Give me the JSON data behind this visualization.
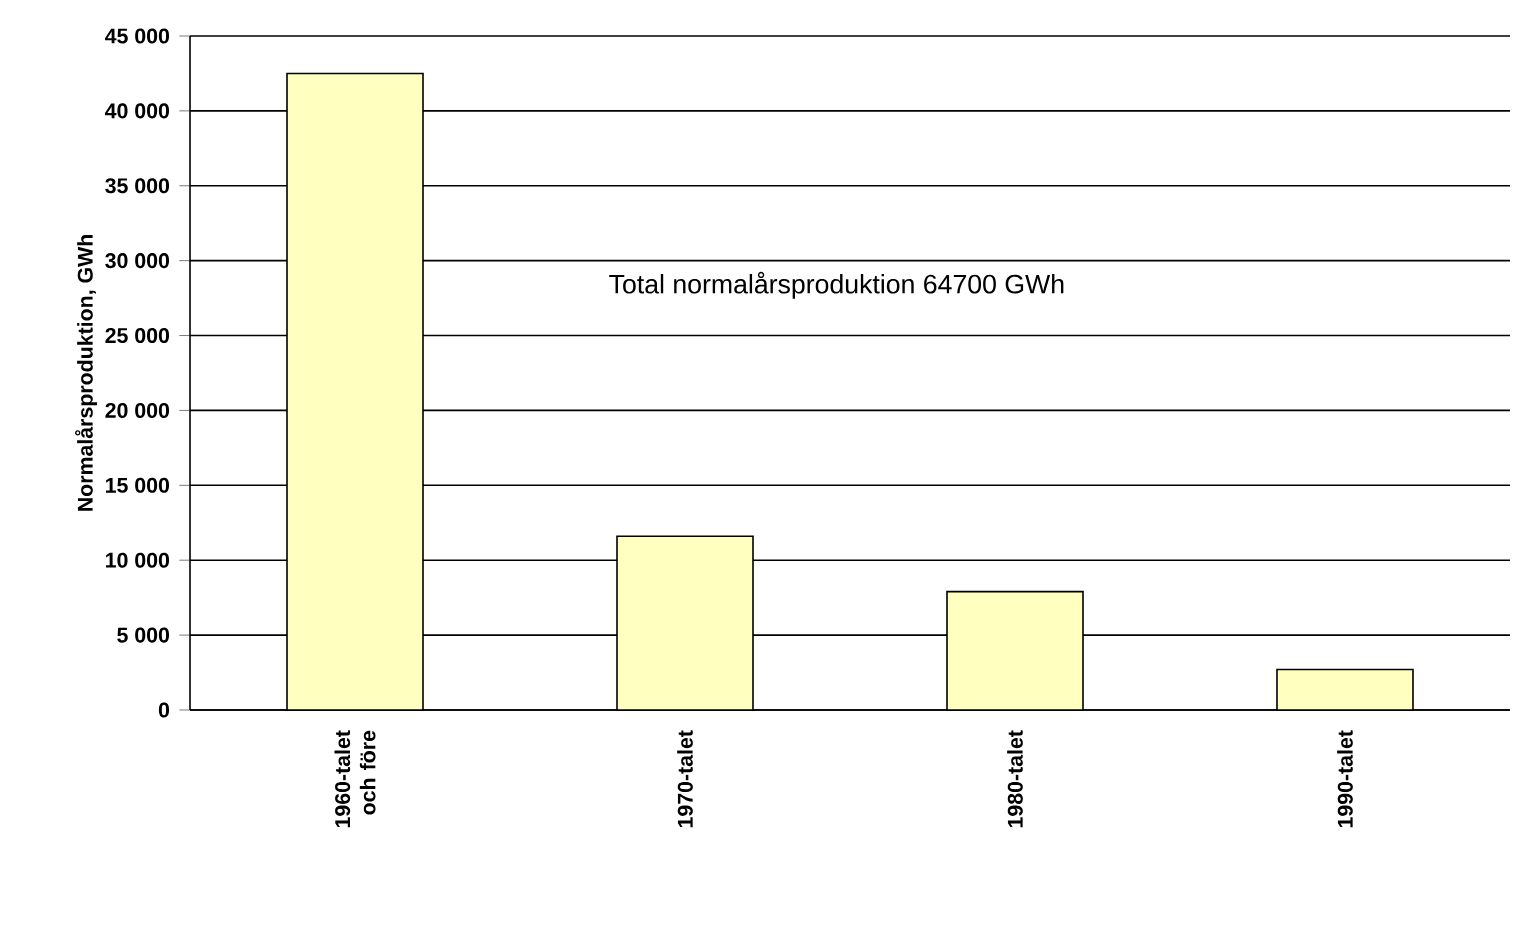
{
  "chart_data": {
    "type": "bar",
    "ylabel": "Normalårsproduktion, GWh",
    "categories": [
      "1960-talet och före",
      "1970-talet",
      "1980-talet",
      "1990-talet"
    ],
    "values": [
      42500,
      11600,
      7900,
      2700
    ],
    "color": "#ffffc0",
    "ylim": [
      0,
      45000
    ],
    "yticks": [
      {
        "value": 0,
        "label": "0"
      },
      {
        "value": 5000,
        "label": "5 000"
      },
      {
        "value": 10000,
        "label": "10 000"
      },
      {
        "value": 15000,
        "label": "15 000"
      },
      {
        "value": 20000,
        "label": "20 000"
      },
      {
        "value": 25000,
        "label": "25 000"
      },
      {
        "value": 30000,
        "label": "30 000"
      },
      {
        "value": 35000,
        "label": "35 000"
      },
      {
        "value": 40000,
        "label": "40 000"
      },
      {
        "value": 45000,
        "label": "45 000"
      }
    ],
    "grid": "y",
    "annotations": [
      "Total normalårsproduktion 64700 GWh"
    ]
  }
}
